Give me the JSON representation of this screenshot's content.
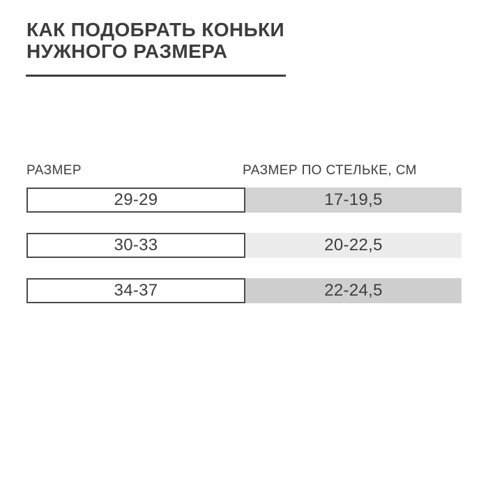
{
  "page": {
    "background_color": "#ffffff",
    "text_color": "#3d3d3d",
    "border_color": "#4b4b4b"
  },
  "header": {
    "title_line1": "КАК ПОДОБРАТЬ КОНЬКИ",
    "title_line2": "НУЖНОГО РАЗМЕРА"
  },
  "table": {
    "columns": [
      {
        "label": "РАЗМЕР"
      },
      {
        "label": "РАЗМЕР ПО СТЕЛЬКЕ, СМ"
      }
    ],
    "rows": [
      {
        "size": "29-29",
        "insole_cm": "17-19,5",
        "shade": "#d2d2d2"
      },
      {
        "size": "30-33",
        "insole_cm": "20-22,5",
        "shade": "#ececec"
      },
      {
        "size": "34-37",
        "insole_cm": "22-24,5",
        "shade": "#cfcfcf"
      }
    ]
  },
  "chart_data": {
    "type": "table",
    "title": "КАК ПОДОБРАТЬ КОНЬКИ НУЖНОГО РАЗМЕРА",
    "columns": [
      "РАЗМЕР",
      "РАЗМЕР ПО СТЕЛЬКЕ, СМ"
    ],
    "rows": [
      [
        "29-29",
        "17-19,5"
      ],
      [
        "30-33",
        "20-22,5"
      ],
      [
        "34-37",
        "22-24,5"
      ]
    ],
    "layout_hints": {
      "row_shades": [
        "#d2d2d2",
        "#ececec",
        "#cfcfcf"
      ],
      "left_cells_bordered": true,
      "grid": false
    }
  }
}
